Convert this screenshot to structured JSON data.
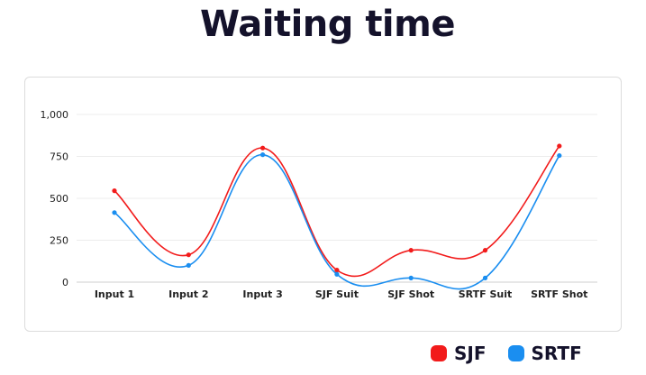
{
  "chart_data": {
    "type": "line",
    "title": "Waiting time",
    "categories": [
      "Input 1",
      "Input 2",
      "Input 3",
      "SJF Suit",
      "SJF Shot",
      "SRTF Suit",
      "SRTF Shot"
    ],
    "series": [
      {
        "name": "SJF",
        "color": "#f21b1b",
        "values": [
          545,
          163,
          800,
          72,
          190,
          190,
          812
        ]
      },
      {
        "name": "SRTF",
        "color": "#1a8ef0",
        "values": [
          415,
          100,
          760,
          47,
          25,
          25,
          755
        ]
      }
    ],
    "ylim": [
      0,
      1000
    ],
    "yticks": [
      0,
      250,
      500,
      750,
      1000
    ],
    "ytick_labels": [
      "0",
      "250",
      "500",
      "750",
      "1,000"
    ],
    "grid": true,
    "legend": "bottom-right"
  }
}
